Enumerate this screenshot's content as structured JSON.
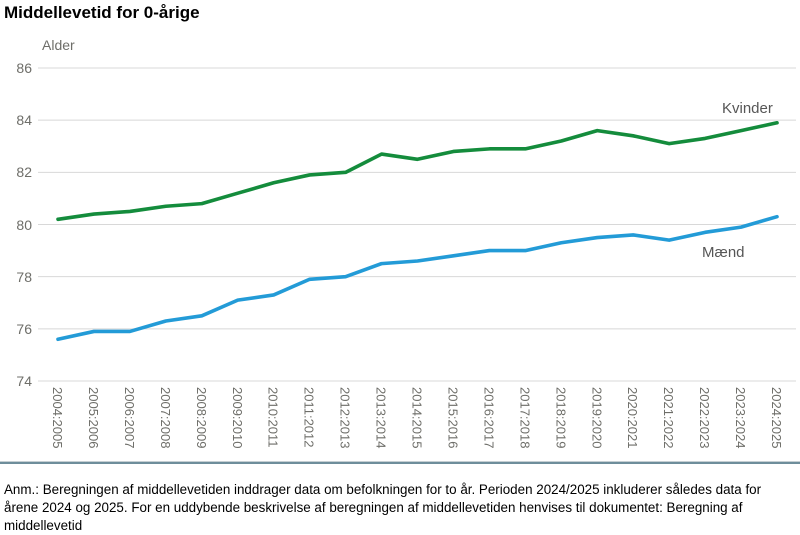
{
  "title": "Middellevetid for 0-årige",
  "chart_data": {
    "type": "line",
    "title": "Middellevetid for 0-årige",
    "xlabel": "",
    "ylabel": "Alder",
    "ylim": [
      74,
      86
    ],
    "yticks": [
      86,
      84,
      82,
      80,
      78,
      76,
      74
    ],
    "grid": "horizontal",
    "legend_position": "inline-end-of-line-labels",
    "categories": [
      "2004:2005",
      "2005:2006",
      "2006:2007",
      "2007:2008",
      "2008:2009",
      "2009:2010",
      "2010:2011",
      "2011:2012",
      "2012:2013",
      "2013:2014",
      "2014:2015",
      "2015:2016",
      "2016:2017",
      "2017:2018",
      "2018:2019",
      "2019:2020",
      "2020:2021",
      "2021:2022",
      "2022:2023",
      "2023:2024",
      "2024:2025"
    ],
    "series": [
      {
        "name": "Kvinder",
        "color": "#148c3c",
        "values": [
          80.2,
          80.4,
          80.5,
          80.7,
          80.8,
          81.2,
          81.6,
          81.9,
          82.0,
          82.7,
          82.5,
          82.8,
          82.9,
          82.9,
          83.2,
          83.6,
          83.4,
          83.1,
          83.3,
          83.6,
          83.9
        ]
      },
      {
        "name": "Mænd",
        "color": "#239bd7",
        "values": [
          75.6,
          75.9,
          75.9,
          76.3,
          76.5,
          77.1,
          77.3,
          77.9,
          78.0,
          78.5,
          78.6,
          78.8,
          79.0,
          79.0,
          79.3,
          79.5,
          79.6,
          79.4,
          79.7,
          79.9,
          80.3
        ]
      }
    ]
  },
  "colors": {
    "grid": "#d8d8d8",
    "tick_text": "#6e6e69",
    "series_label_text": "#565656",
    "separator": "#6e8e9b"
  },
  "footnote": "Anm.: Beregningen af middellevetiden inddrager data om befolkningen for to år. Perioden 2024/2025 inkluderer således data for årene 2024 og 2025. For en uddybende beskrivelse af beregningen af middellevetiden henvises til dokumentet: Beregning af middellevetid"
}
